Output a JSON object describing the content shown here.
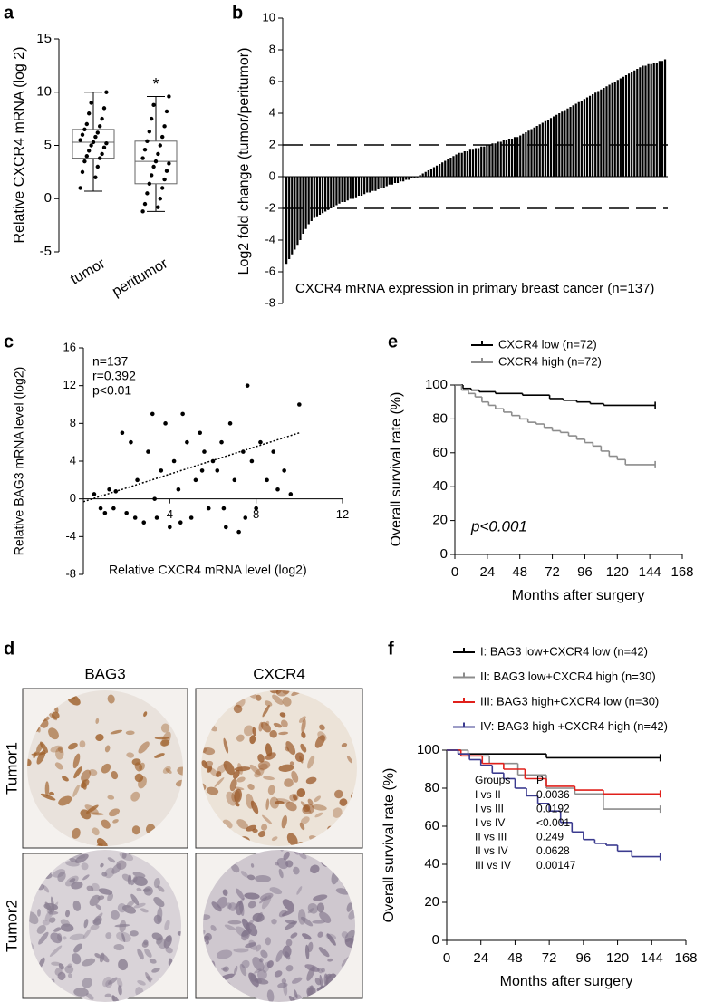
{
  "chart_data": [
    {
      "type": "box",
      "label": "a",
      "ylabel": "Relative CXCR4 mRNA (log 2)",
      "categories": [
        "tumor",
        "peritumor"
      ],
      "boxes": [
        {
          "min": 0.7,
          "q1": 3.8,
          "median": 5.3,
          "q3": 6.5,
          "max": 10
        },
        {
          "min": -1.2,
          "q1": 1.4,
          "median": 3.5,
          "q3": 5.4,
          "max": 9.6
        }
      ],
      "points": [
        [
          1,
          2,
          2.5,
          3,
          3.5,
          3.8,
          4,
          4.2,
          4.5,
          4.8,
          5,
          5.2,
          5.3,
          5.5,
          5.8,
          6,
          6.2,
          6.5,
          6.8,
          7,
          7.5,
          8,
          8.5,
          9,
          10
        ],
        [
          -1.2,
          -0.8,
          -0.5,
          0,
          0.5,
          1,
          1.4,
          1.8,
          2.2,
          2.6,
          3,
          3.3,
          3.5,
          3.8,
          4.2,
          4.6,
          5,
          5.4,
          5.8,
          6.3,
          6.8,
          7.5,
          8.2,
          8.8,
          9.6
        ]
      ],
      "annotation": "*",
      "color": "#000000",
      "ylim": [
        -5,
        15
      ],
      "yticks": [
        -5,
        0,
        5,
        10,
        15
      ]
    },
    {
      "type": "bar",
      "label": "b",
      "ylabel": "Log2 fold change (tumor/peritumor)",
      "annotation": "CXCR4 mRNA expression in primary breast cancer (n=137)",
      "color": "#000000",
      "values": [
        -5.5,
        -5.2,
        -4.9,
        -4.6,
        -4.3,
        -4.0,
        -3.6,
        -3.3,
        -3.0,
        -2.8,
        -2.6,
        -2.5,
        -2.4,
        -2.3,
        -2.2,
        -2.1,
        -2.0,
        -1.9,
        -1.8,
        -1.7,
        -1.6,
        -1.6,
        -1.5,
        -1.4,
        -1.4,
        -1.3,
        -1.2,
        -1.2,
        -1.1,
        -1.0,
        -1.0,
        -0.9,
        -0.9,
        -0.8,
        -0.7,
        -0.7,
        -0.6,
        -0.5,
        -0.5,
        -0.4,
        -0.4,
        -0.3,
        -0.3,
        -0.2,
        -0.2,
        -0.1,
        -0.1,
        -0.05,
        0.1,
        0.2,
        0.3,
        0.4,
        0.5,
        0.6,
        0.7,
        0.8,
        0.9,
        1.0,
        1.1,
        1.2,
        1.3,
        1.4,
        1.5,
        1.5,
        1.6,
        1.6,
        1.7,
        1.7,
        1.8,
        1.8,
        1.9,
        1.9,
        2.0,
        2.0,
        2.1,
        2.1,
        2.2,
        2.2,
        2.3,
        2.3,
        2.4,
        2.4,
        2.5,
        2.5,
        2.6,
        2.7,
        2.8,
        2.9,
        3.0,
        3.1,
        3.2,
        3.3,
        3.4,
        3.5,
        3.6,
        3.7,
        3.8,
        3.9,
        4.0,
        4.1,
        4.2,
        4.3,
        4.4,
        4.5,
        4.6,
        4.7,
        4.8,
        4.9,
        5.0,
        5.1,
        5.2,
        5.3,
        5.4,
        5.5,
        5.6,
        5.7,
        5.8,
        5.9,
        6.0,
        6.1,
        6.2,
        6.3,
        6.4,
        6.5,
        6.6,
        6.7,
        6.8,
        6.9,
        7.0,
        7.0,
        7.1,
        7.1,
        7.2,
        7.2,
        7.3,
        7.3,
        7.4
      ],
      "reference_lines": [
        2,
        -2
      ],
      "ylim": [
        -8,
        10
      ],
      "yticks": [
        -8,
        -6,
        -4,
        -2,
        0,
        2,
        4,
        6,
        8,
        10
      ]
    },
    {
      "type": "scatter",
      "label": "c",
      "xlabel": "Relative CXCR4 mRNA level (log2)",
      "ylabel": "Relative BAG3 mRNA level (log2)",
      "annotations": [
        "n=137",
        "r=0.392",
        "p<0.01"
      ],
      "color": "#000000",
      "x": [
        0.5,
        0.8,
        1,
        1.2,
        1.5,
        1.8,
        2,
        2.2,
        2.5,
        2.8,
        3,
        3.2,
        3.4,
        3.6,
        3.8,
        4,
        4.2,
        4.4,
        4.6,
        4.8,
        5,
        5.2,
        5.4,
        5.6,
        5.8,
        6,
        6.2,
        6.4,
        6.6,
        6.8,
        7,
        7.2,
        7.4,
        7.6,
        7.8,
        8,
        8.2,
        8.5,
        8.8,
        9,
        9.3,
        9.6,
        10,
        1.4,
        2.4,
        3.3,
        4.5,
        5.5,
        6.5,
        7.5
      ],
      "y": [
        0.5,
        -1,
        -1.5,
        1,
        0.8,
        7,
        -1.5,
        6,
        2,
        -2.5,
        5,
        9,
        -2,
        3,
        8,
        -3,
        4,
        1,
        9,
        6,
        -2,
        2,
        7,
        5,
        -1,
        4,
        3,
        6,
        -3,
        8,
        2,
        -3.5,
        5,
        12,
        4,
        -1,
        6,
        2,
        5,
        1,
        3,
        0.5,
        10,
        -1,
        -2,
        0,
        -2.5,
        3,
        -1,
        -2
      ],
      "trendline": {
        "x": [
          0,
          10
        ],
        "y": [
          -0.3,
          7
        ]
      },
      "xlim": [
        0,
        12
      ],
      "xticks": [
        4,
        8,
        12
      ],
      "ylim": [
        -8,
        16
      ],
      "yticks": [
        -8,
        -4,
        0,
        4,
        8,
        12,
        16
      ]
    },
    {
      "type": "step",
      "label": "e",
      "xlabel": "Months after surgery",
      "ylabel": "Overall survival rate (%)",
      "annotation": "p<0.001",
      "legend": "top-left",
      "series": [
        {
          "name": "CXCR4 low (n=72)",
          "color": "#000000",
          "x": [
            0,
            6,
            12,
            18,
            30,
            50,
            70,
            80,
            90,
            100,
            110,
            148
          ],
          "values": [
            100,
            98,
            97,
            96,
            95,
            94,
            92,
            91,
            90,
            89,
            88,
            88
          ]
        },
        {
          "name": "CXCR4 high (n=72)",
          "color": "#8c8c8c",
          "x": [
            0,
            5,
            10,
            15,
            20,
            25,
            30,
            36,
            42,
            48,
            54,
            60,
            66,
            72,
            78,
            84,
            90,
            96,
            102,
            108,
            114,
            120,
            126,
            148
          ],
          "values": [
            100,
            97,
            95,
            93,
            90,
            88,
            86,
            84,
            82,
            80,
            78,
            77,
            75,
            73,
            72,
            70,
            68,
            66,
            64,
            61,
            58,
            56,
            53,
            53
          ]
        }
      ],
      "xlim": [
        0,
        168
      ],
      "xticks": [
        0,
        24,
        48,
        72,
        96,
        120,
        144,
        168
      ],
      "ylim": [
        0,
        100
      ],
      "yticks": [
        0,
        20,
        40,
        60,
        80,
        100
      ]
    },
    {
      "type": "step",
      "label": "f",
      "xlabel": "Months after surgery",
      "ylabel": "Overall survival rate (%)",
      "legend": "top-left",
      "series": [
        {
          "name": "I: BAG3 low+CXCR4 low (n=42)",
          "color": "#000000",
          "x": [
            0,
            10,
            70,
            150
          ],
          "values": [
            100,
            98,
            96,
            96
          ]
        },
        {
          "name": "II: BAG3 low+CXCR4 high (n=30)",
          "color": "#8c8c8c",
          "x": [
            0,
            15,
            30,
            50,
            70,
            90,
            110,
            150
          ],
          "values": [
            100,
            97,
            93,
            87,
            80,
            77,
            69,
            69
          ]
        },
        {
          "name": "III: BAG3 high+CXCR4 low (n=30)",
          "color": "#e0201b",
          "x": [
            0,
            10,
            25,
            40,
            55,
            70,
            90,
            110,
            150
          ],
          "values": [
            100,
            97,
            93,
            90,
            85,
            81,
            79,
            77,
            77
          ]
        },
        {
          "name": "IV: BAG3 high +CXCR4 high (n=42)",
          "color": "#3b3b8f",
          "x": [
            0,
            8,
            16,
            24,
            32,
            40,
            48,
            56,
            64,
            72,
            80,
            88,
            96,
            104,
            112,
            120,
            130,
            150
          ],
          "values": [
            100,
            98,
            95,
            92,
            88,
            85,
            80,
            76,
            72,
            68,
            62,
            57,
            53,
            51,
            50,
            47,
            44,
            44
          ]
        }
      ],
      "table": {
        "header": [
          "Groups",
          "P"
        ],
        "rows": [
          [
            "I vs II",
            "0.0036"
          ],
          [
            "I vs III",
            "0.0192"
          ],
          [
            "I vs IV",
            "<0.001"
          ],
          [
            "II vs III",
            "0.249"
          ],
          [
            "II vs IV",
            "0.0628"
          ],
          [
            "III vs IV",
            "0.00147"
          ]
        ]
      },
      "xlim": [
        0,
        168
      ],
      "xticks": [
        0,
        24,
        48,
        72,
        96,
        120,
        144,
        168
      ],
      "ylim": [
        0,
        100
      ],
      "yticks": [
        0,
        20,
        40,
        60,
        80,
        100
      ]
    }
  ],
  "image_panel": {
    "label": "d",
    "columns": [
      "BAG3",
      "CXCR4"
    ],
    "rows": [
      "Tumor1",
      "Tumor2"
    ]
  }
}
